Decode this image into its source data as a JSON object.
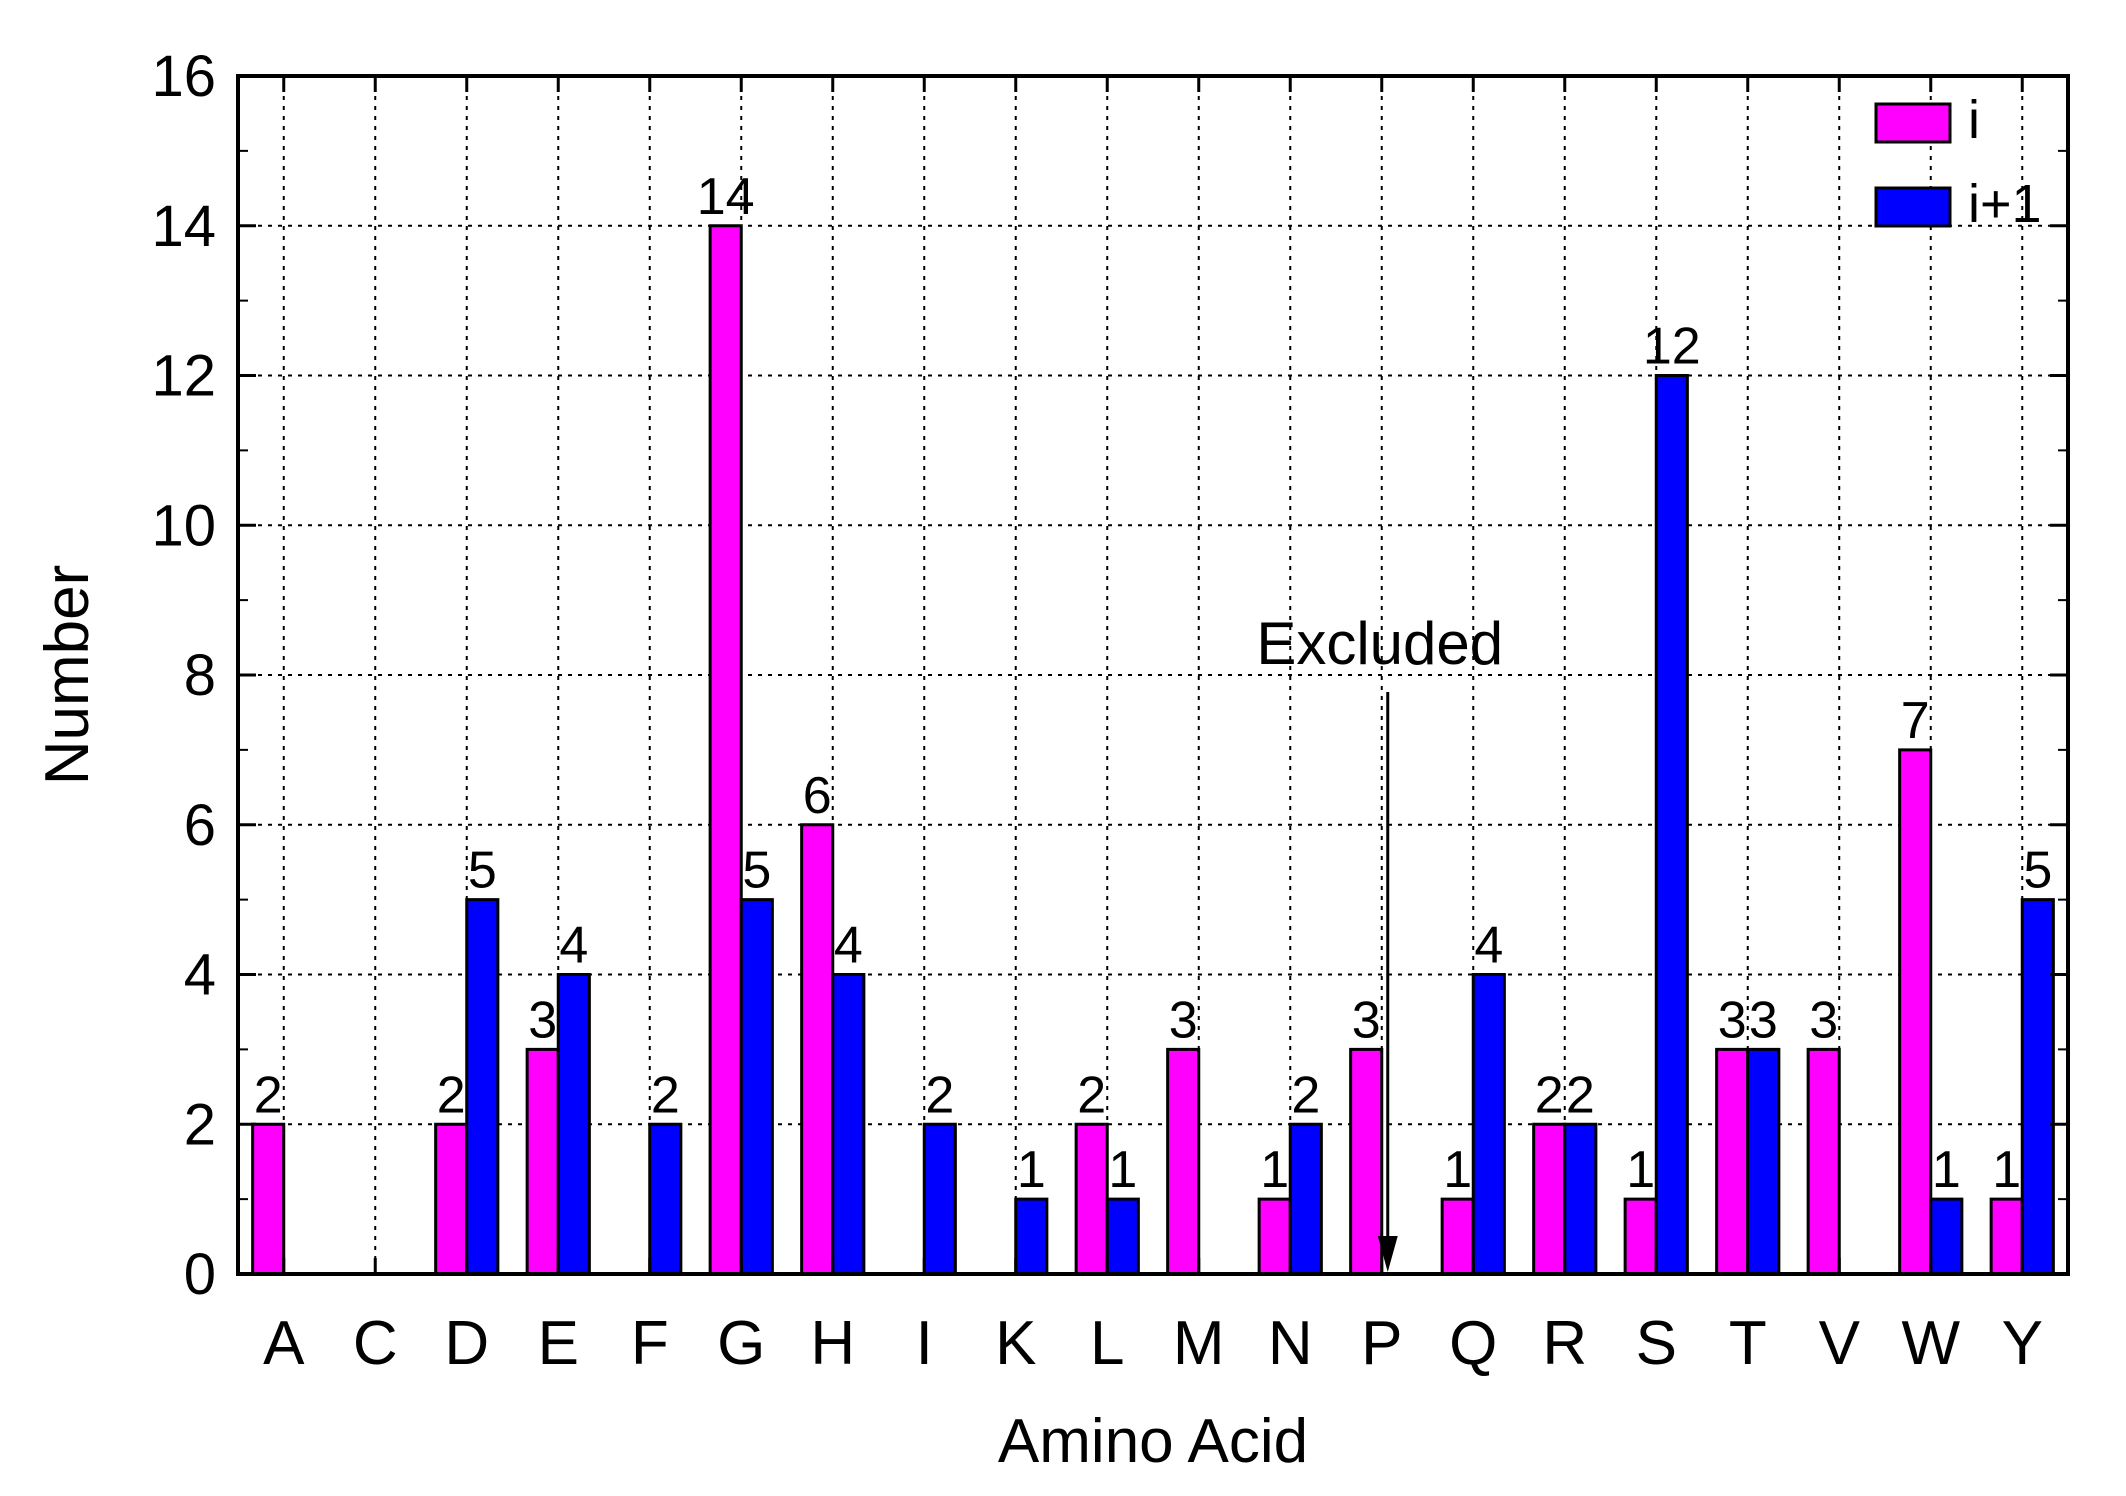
{
  "chart_data": {
    "type": "bar",
    "title": "",
    "xlabel": "Amino Acid",
    "ylabel": "Number",
    "ylim": [
      0,
      16
    ],
    "yticks": [
      "0",
      "2",
      "4",
      "6",
      "8",
      "10",
      "12",
      "14",
      "16"
    ],
    "grid": true,
    "legend_position": "top-right",
    "categories": [
      "A",
      "C",
      "D",
      "E",
      "F",
      "G",
      "H",
      "I",
      "K",
      "L",
      "M",
      "N",
      "P",
      "Q",
      "R",
      "S",
      "T",
      "V",
      "W",
      "Y"
    ],
    "series": [
      {
        "name": "i",
        "color": "#ff00ff",
        "values": [
          2,
          0,
          2,
          3,
          0,
          14,
          6,
          0,
          0,
          2,
          3,
          1,
          3,
          1,
          2,
          1,
          3,
          3,
          7,
          1
        ]
      },
      {
        "name": "i+1",
        "color": "#0000ff",
        "values": [
          0,
          0,
          5,
          4,
          2,
          5,
          4,
          2,
          1,
          1,
          0,
          2,
          0,
          4,
          2,
          12,
          3,
          0,
          1,
          5
        ]
      }
    ],
    "annotation": {
      "text": "Excluded",
      "category": "P"
    }
  }
}
